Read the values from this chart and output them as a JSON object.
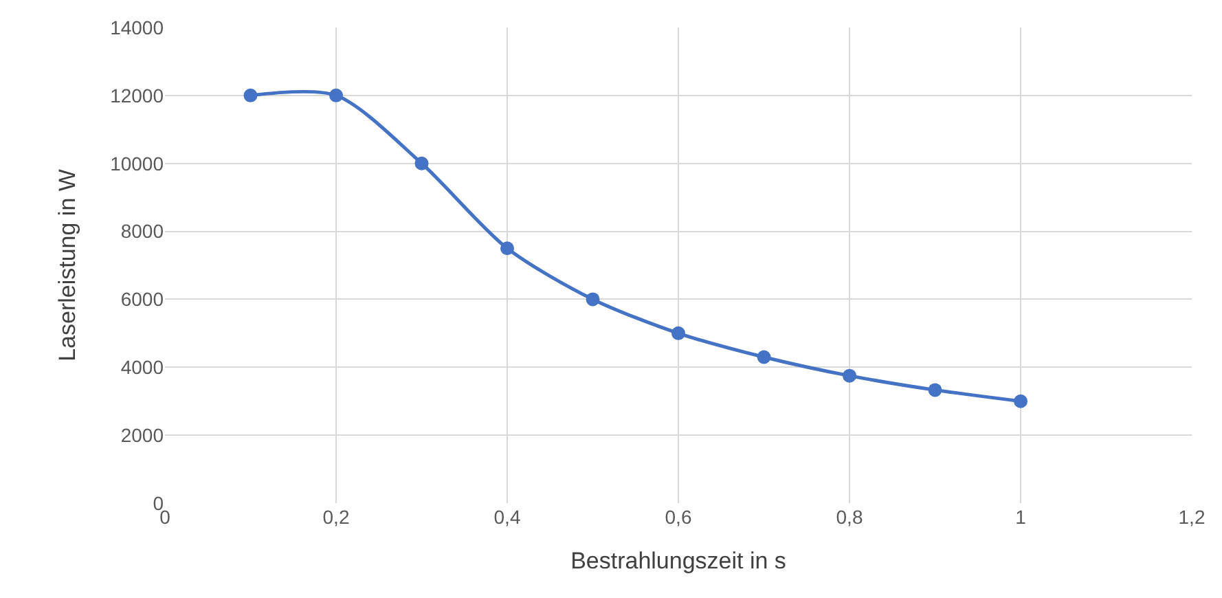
{
  "chart_data": {
    "type": "line",
    "xlabel": "Bestrahlungszeit in s",
    "ylabel": "Laserleistung in W",
    "x": [
      0.1,
      0.2,
      0.3,
      0.4,
      0.5,
      0.6,
      0.7,
      0.8,
      0.9,
      1
    ],
    "series": [
      {
        "color": "#4472c4",
        "values": [
          12000,
          12000,
          10000,
          7500,
          6000,
          5000,
          4300,
          3750,
          3330,
          3000
        ]
      }
    ],
    "xlim": [
      0,
      1.2
    ],
    "xticks": [
      0,
      {
        "value": 0.2,
        "label": "0,2"
      },
      {
        "value": 0.4,
        "label": "0,4"
      },
      {
        "value": 0.6,
        "label": "0,6"
      },
      {
        "value": 0.8,
        "label": "0,8"
      },
      1,
      {
        "value": 1.2,
        "label": "1,2"
      }
    ],
    "ylim": [
      0,
      14000
    ],
    "yticks": [
      0,
      2000,
      4000,
      6000,
      8000,
      10000,
      12000,
      14000
    ],
    "grid": true,
    "marker": "circle",
    "line_style": "solid"
  }
}
